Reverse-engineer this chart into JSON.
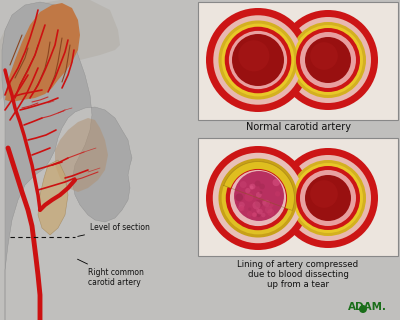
{
  "bg_color": "#c0bfbd",
  "normal_label": "Normal carotid artery",
  "dissection_label": "Lining of artery compressed\ndue to blood dissecting\nup from a tear",
  "label_level_of_section": "Level of section",
  "label_right_common": "Right common\ncarotid artery",
  "colors": {
    "outer_red": "#cc1a1a",
    "outer_red2": "#dd2222",
    "pink_mid": "#f0b8b8",
    "yellow": "#e8c020",
    "yellow2": "#f0d040",
    "inner_red": "#bb1111",
    "lumen_dark": "#8b0000",
    "lumen_bright": "#cc2020",
    "thrombus_pink": "#c0407a",
    "thrombus_dark": "#aa2255",
    "thrombus_light": "#d06090",
    "face_gray": "#a0a0a0",
    "face_shadow": "#888888",
    "brain_tan": "#c08050",
    "brain_dark": "#9a6030",
    "artery_red": "#cc1111",
    "panel_bg": "#e8ddd0",
    "panel_border": "#999999",
    "text_dark": "#111111",
    "adam_green": "#1a6e1a",
    "neck_tan": "#b08060"
  }
}
